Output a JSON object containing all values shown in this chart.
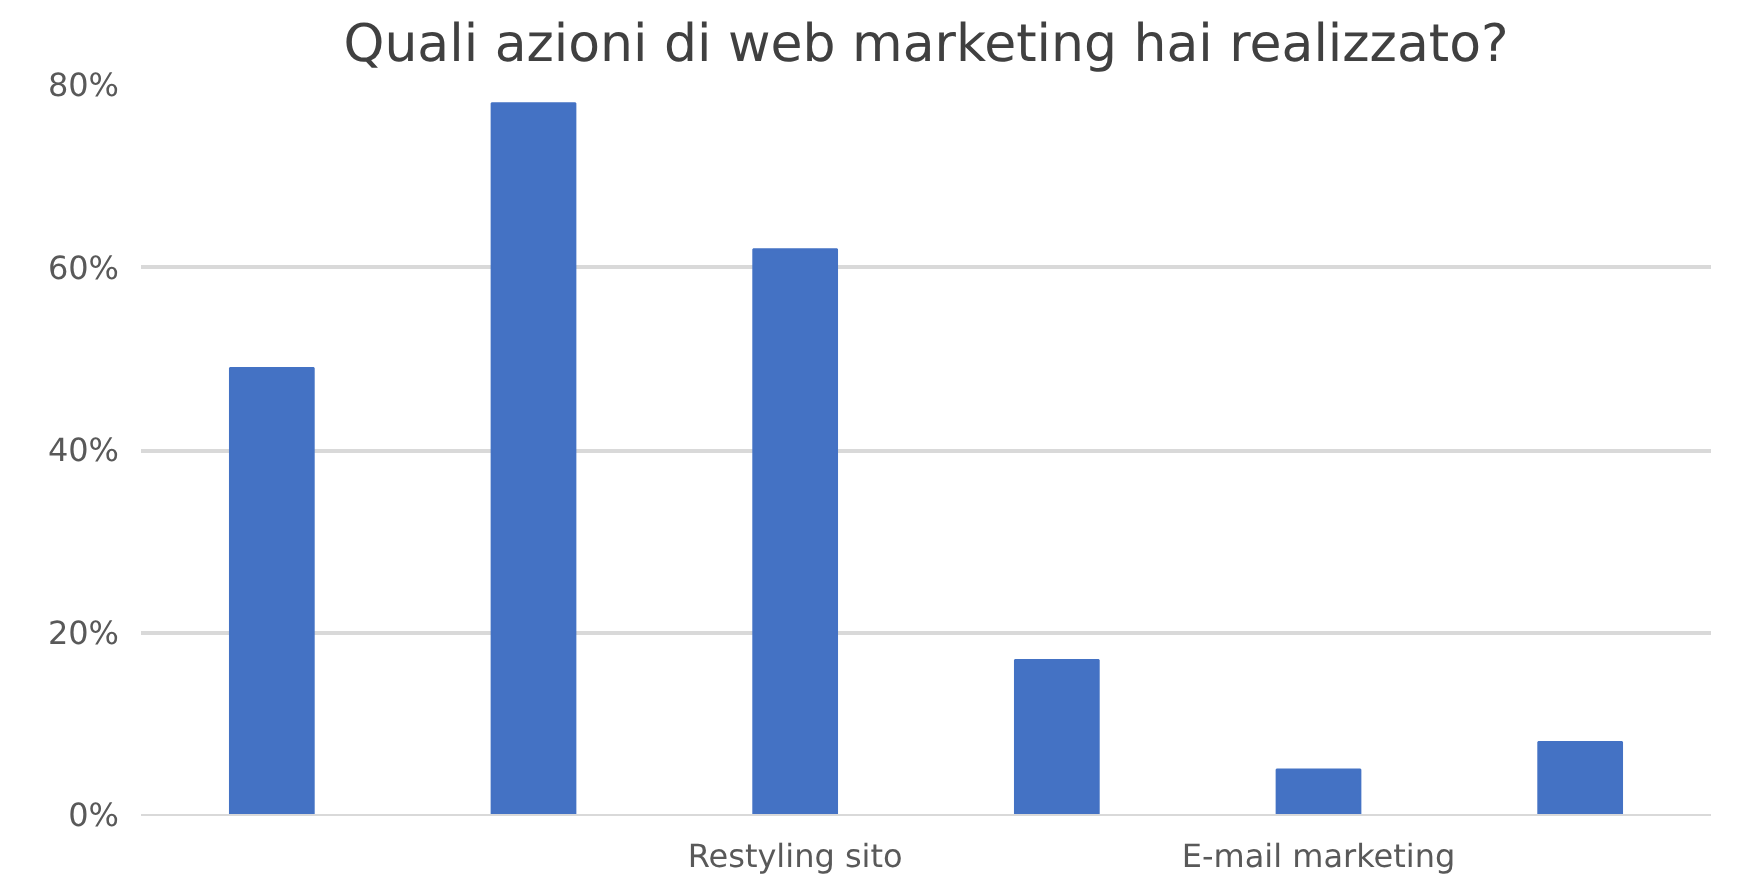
{
  "chart_data": {
    "type": "bar",
    "title": "Quali azioni di web marketing hai realizzato?",
    "categories": [
      null,
      null,
      "Restyling sito",
      null,
      "E-mail marketing",
      null
    ],
    "values": [
      49,
      78,
      62,
      17,
      5,
      8
    ],
    "color": "#4472c4",
    "ylim": [
      0,
      80
    ],
    "yticks": [
      {
        "value": 0,
        "label": "0%"
      },
      {
        "value": 20,
        "label": "20%"
      },
      {
        "value": 40,
        "label": "40%"
      },
      {
        "value": 60,
        "label": "60%"
      },
      {
        "value": 80,
        "label": "80%"
      }
    ],
    "grid": "y"
  }
}
